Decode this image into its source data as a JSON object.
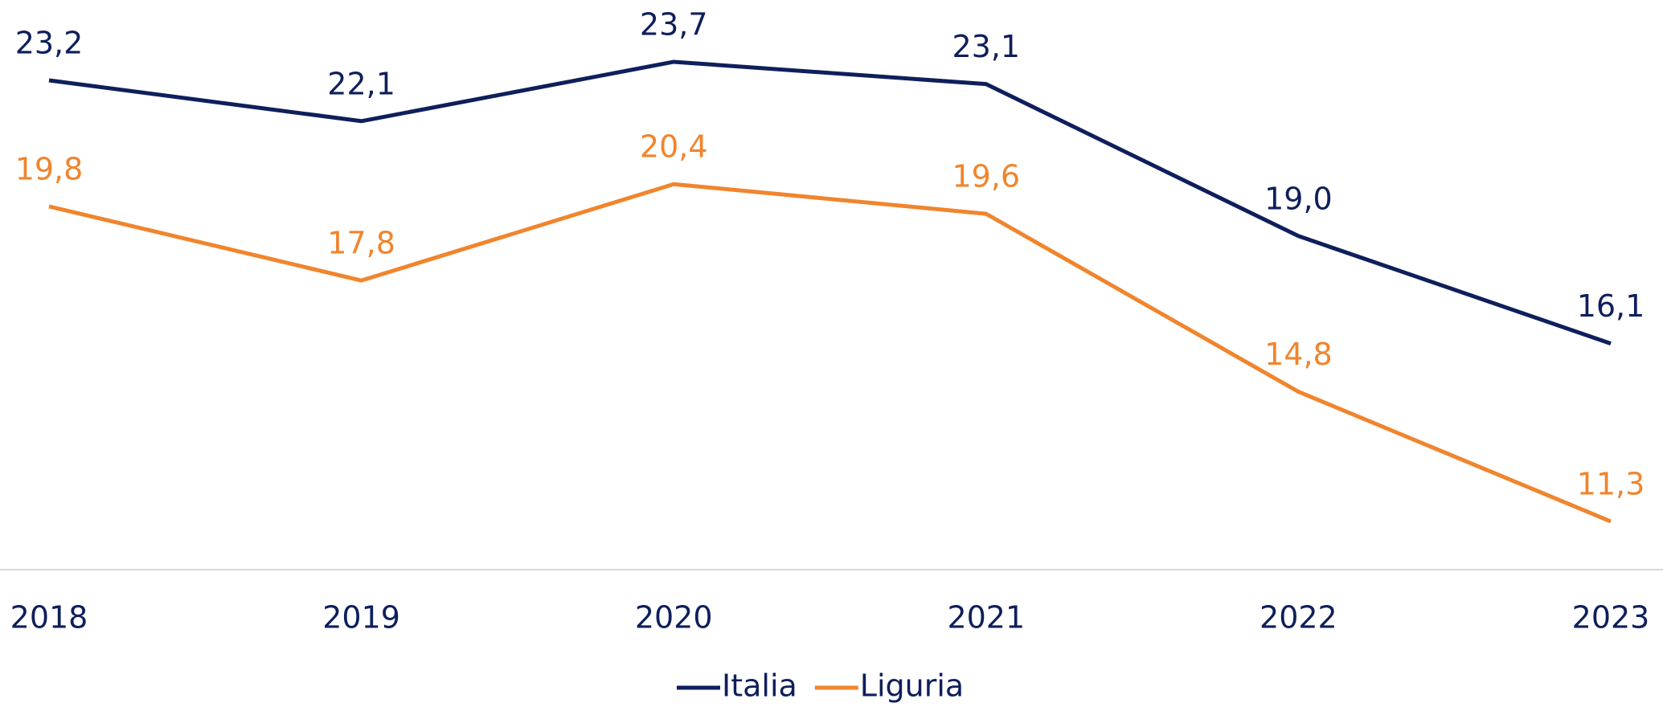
{
  "chart_data": {
    "type": "line",
    "categories": [
      "2018",
      "2019",
      "2020",
      "2021",
      "2022",
      "2023"
    ],
    "series": [
      {
        "name": "Italia",
        "color": "#0e1f5b",
        "values": [
          23.2,
          22.1,
          23.7,
          23.1,
          19.0,
          16.1
        ],
        "value_labels": [
          "23,2",
          "22,1",
          "23,7",
          "23,1",
          "19,0",
          "16,1"
        ]
      },
      {
        "name": "Liguria",
        "color": "#f0852d",
        "values": [
          19.8,
          17.8,
          20.4,
          19.6,
          14.8,
          11.3
        ],
        "value_labels": [
          "19,8",
          "17,8",
          "20,4",
          "19,6",
          "14,8",
          "11,3"
        ]
      }
    ],
    "ylim": [
      10,
      25
    ],
    "grid": false,
    "legend": "bottom"
  }
}
